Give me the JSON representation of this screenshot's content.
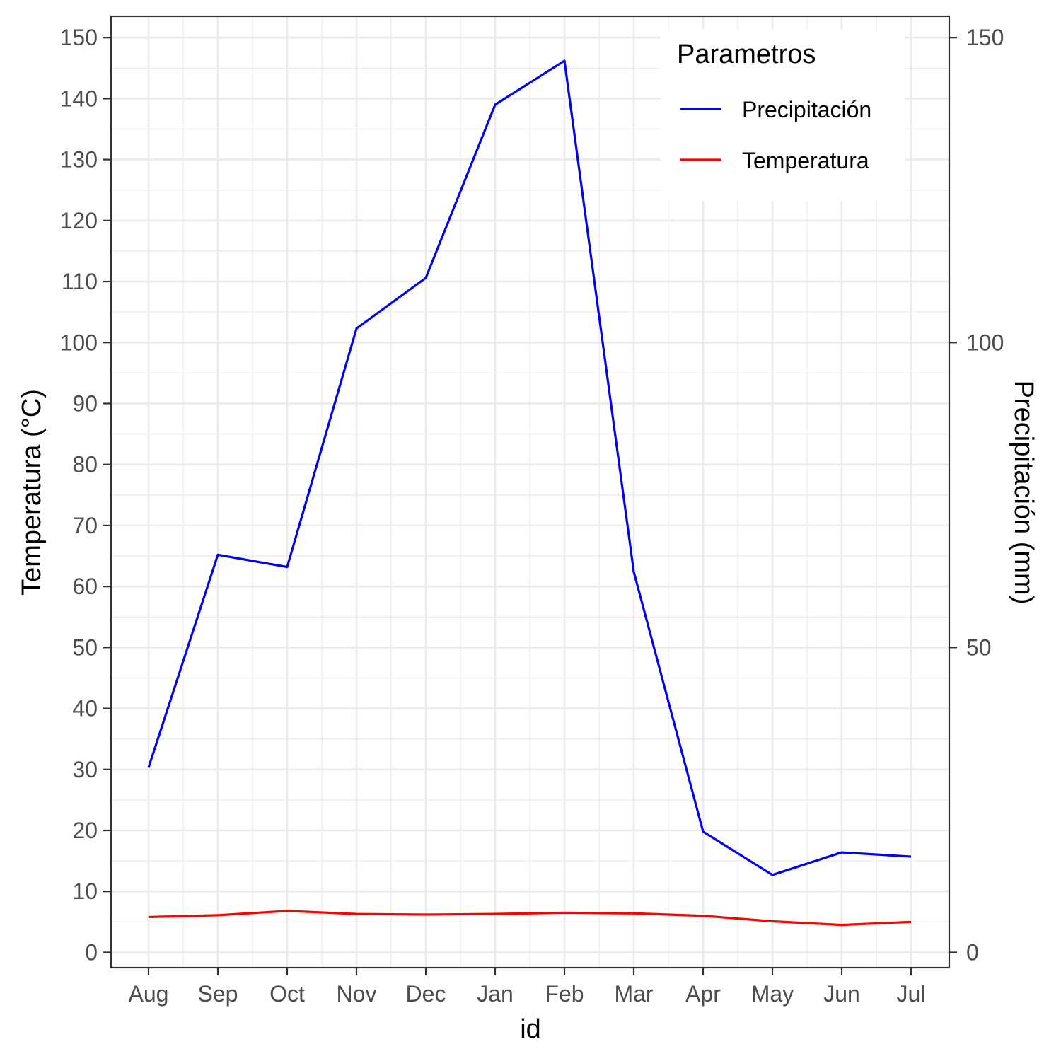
{
  "chart_data": {
    "type": "line",
    "title": "",
    "xlabel": "id",
    "ylabel": "Temperatura (°C)",
    "y2label": "Precipitación (mm)",
    "categories": [
      "Aug",
      "Sep",
      "Oct",
      "Nov",
      "Dec",
      "Jan",
      "Feb",
      "Mar",
      "Apr",
      "May",
      "Jun",
      "Jul"
    ],
    "ylim": [
      -2.5,
      153.5
    ],
    "y_ticks": [
      0,
      10,
      20,
      30,
      40,
      50,
      60,
      70,
      80,
      90,
      100,
      110,
      120,
      130,
      140,
      150
    ],
    "y2_ticks": [
      0,
      50,
      100,
      150
    ],
    "grid": true,
    "legend": {
      "title": "Parametros",
      "placement": "top-right",
      "entries": [
        "Precipitación",
        "Temperatura"
      ]
    },
    "series": [
      {
        "name": "Precipitación",
        "color": "#0000ff",
        "values": [
          30.3,
          65.2,
          63.2,
          102.3,
          110.6,
          139.0,
          146.2,
          62.4,
          19.8,
          12.7,
          16.4,
          15.7
        ]
      },
      {
        "name": "Temperatura",
        "color": "#ff0000",
        "values": [
          5.8,
          6.1,
          6.8,
          6.3,
          6.2,
          6.3,
          6.5,
          6.4,
          6.0,
          5.1,
          4.5,
          5.0
        ]
      }
    ]
  }
}
